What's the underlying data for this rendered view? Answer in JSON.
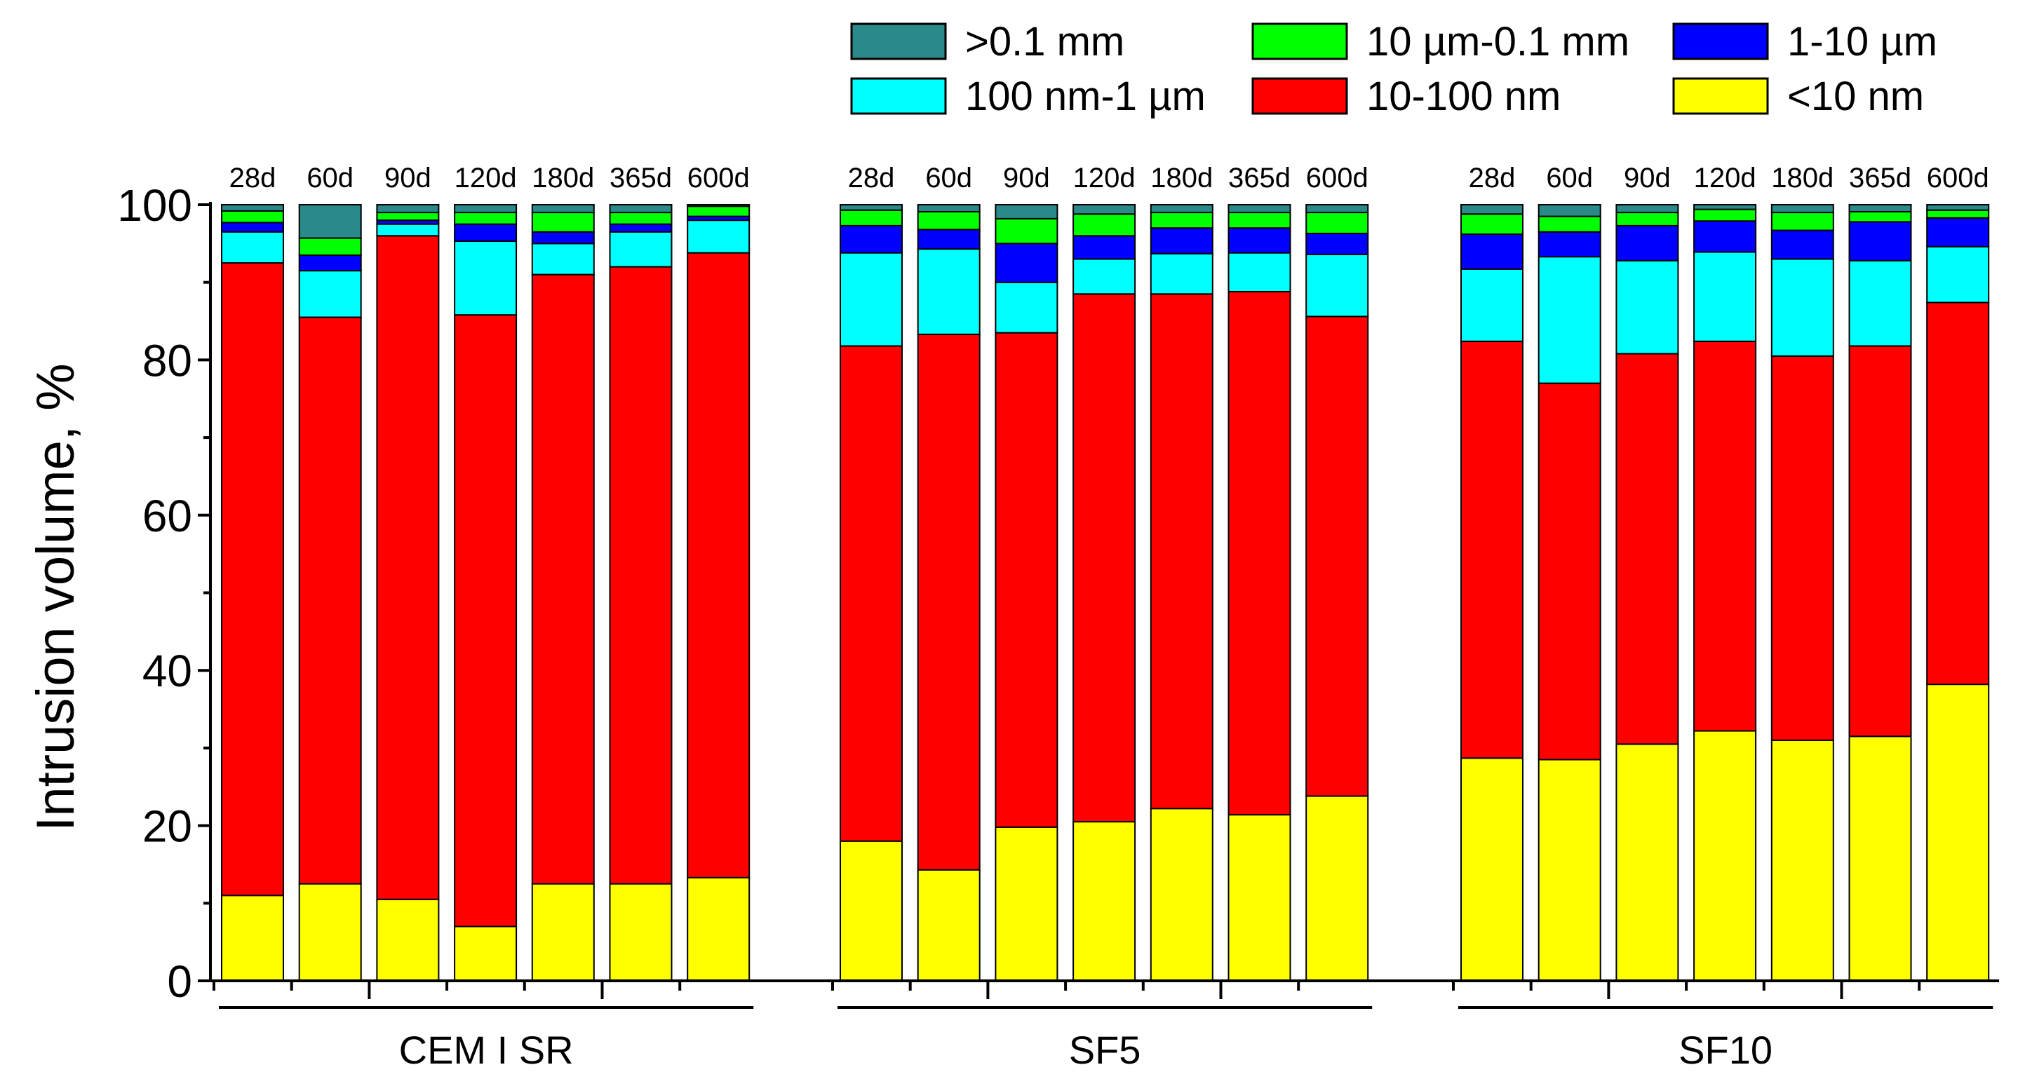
{
  "chart_data": {
    "type": "bar",
    "stacked": true,
    "ylabel": "Intrusion volume, %",
    "ylim": [
      0,
      100
    ],
    "yticks": [
      0,
      20,
      40,
      60,
      80,
      100
    ],
    "legend_position": "top-right",
    "series": [
      {
        "name": ">0.1 mm",
        "color": "#2a8a8a"
      },
      {
        "name": "10 µm-0.1 mm",
        "color": "#00ff00"
      },
      {
        "name": "1-10 µm",
        "color": "#0000ff"
      },
      {
        "name": "100 nm-1 µm",
        "color": "#00ffff"
      },
      {
        "name": "10-100 nm",
        "color": "#ff0000"
      },
      {
        "name": "<10 nm",
        "color": "#ffff00"
      }
    ],
    "stack_order": [
      "<10 nm",
      "10-100 nm",
      "100 nm-1 µm",
      "1-10 µm",
      "10 µm-0.1 mm",
      ">0.1 mm"
    ],
    "groups": [
      {
        "name": "CEM I SR",
        "bars": [
          {
            "label": "28d",
            "values": {
              "<10 nm": 11,
              "10-100 nm": 81.5,
              "100 nm-1 µm": 4,
              "1-10 µm": 1.2,
              "10 µm-0.1 mm": 1.5,
              ">0.1 mm": 0.8
            }
          },
          {
            "label": "60d",
            "values": {
              "<10 nm": 12.5,
              "10-100 nm": 73,
              "100 nm-1 µm": 6,
              "1-10 µm": 2,
              "10 µm-0.1 mm": 2.2,
              ">0.1 mm": 4.3
            }
          },
          {
            "label": "90d",
            "values": {
              "<10 nm": 10.5,
              "10-100 nm": 85.5,
              "100 nm-1 µm": 1.5,
              "1-10 µm": 0.5,
              "10 µm-0.1 mm": 1,
              ">0.1 mm": 1
            }
          },
          {
            "label": "120d",
            "values": {
              "<10 nm": 7,
              "10-100 nm": 78.8,
              "100 nm-1 µm": 9.5,
              "1-10 µm": 2.2,
              "10 µm-0.1 mm": 1.5,
              ">0.1 mm": 1
            }
          },
          {
            "label": "180d",
            "values": {
              "<10 nm": 12.5,
              "10-100 nm": 78.5,
              "100 nm-1 µm": 4,
              "1-10 µm": 1.5,
              "10 µm-0.1 mm": 2.5,
              ">0.1 mm": 1
            }
          },
          {
            "label": "365d",
            "values": {
              "<10 nm": 12.5,
              "10-100 nm": 79.5,
              "100 nm-1 µm": 4.5,
              "1-10 µm": 1,
              "10 µm-0.1 mm": 1.5,
              ">0.1 mm": 1
            }
          },
          {
            "label": "600d",
            "values": {
              "<10 nm": 13.3,
              "10-100 nm": 80.5,
              "100 nm-1 µm": 4.2,
              "1-10 µm": 0.5,
              "10 µm-0.1 mm": 1.3,
              ">0.1 mm": 0.2
            }
          }
        ]
      },
      {
        "name": "SF5",
        "bars": [
          {
            "label": "28d",
            "values": {
              "<10 nm": 18,
              "10-100 nm": 63.8,
              "100 nm-1 µm": 12,
              "1-10 µm": 3.5,
              "10 µm-0.1 mm": 2,
              ">0.1 mm": 0.7
            }
          },
          {
            "label": "60d",
            "values": {
              "<10 nm": 14.3,
              "10-100 nm": 69,
              "100 nm-1 µm": 11,
              "1-10 µm": 2.5,
              "10 µm-0.1 mm": 2.3,
              ">0.1 mm": 0.9
            }
          },
          {
            "label": "90d",
            "values": {
              "<10 nm": 19.8,
              "10-100 nm": 63.7,
              "100 nm-1 µm": 6.5,
              "1-10 µm": 5,
              "10 µm-0.1 mm": 3.2,
              ">0.1 mm": 1.8
            }
          },
          {
            "label": "120d",
            "values": {
              "<10 nm": 20.5,
              "10-100 nm": 68,
              "100 nm-1 µm": 4.5,
              "1-10 µm": 3,
              "10 µm-0.1 mm": 2.8,
              ">0.1 mm": 1.2
            }
          },
          {
            "label": "180d",
            "values": {
              "<10 nm": 22.2,
              "10-100 nm": 66.3,
              "100 nm-1 µm": 5.2,
              "1-10 µm": 3.3,
              "10 µm-0.1 mm": 2,
              ">0.1 mm": 1
            }
          },
          {
            "label": "365d",
            "values": {
              "<10 nm": 21.4,
              "10-100 nm": 67.4,
              "100 nm-1 µm": 5,
              "1-10 µm": 3.2,
              "10 µm-0.1 mm": 2,
              ">0.1 mm": 1
            }
          },
          {
            "label": "600d",
            "values": {
              "<10 nm": 23.8,
              "10-100 nm": 61.8,
              "100 nm-1 µm": 8,
              "1-10 µm": 2.7,
              "10 µm-0.1 mm": 2.7,
              ">0.1 mm": 1
            }
          }
        ]
      },
      {
        "name": "SF10",
        "bars": [
          {
            "label": "28d",
            "values": {
              "<10 nm": 28.7,
              "10-100 nm": 53.7,
              "100 nm-1 µm": 9.3,
              "1-10 µm": 4.5,
              "10 µm-0.1 mm": 2.6,
              ">0.1 mm": 1.2
            }
          },
          {
            "label": "60d",
            "values": {
              "<10 nm": 28.5,
              "10-100 nm": 48.5,
              "100 nm-1 µm": 16.3,
              "1-10 µm": 3.2,
              "10 µm-0.1 mm": 2,
              ">0.1 mm": 1.5
            }
          },
          {
            "label": "90d",
            "values": {
              "<10 nm": 30.5,
              "10-100 nm": 50.3,
              "100 nm-1 µm": 12,
              "1-10 µm": 4.5,
              "10 µm-0.1 mm": 1.7,
              ">0.1 mm": 1
            }
          },
          {
            "label": "120d",
            "values": {
              "<10 nm": 32.2,
              "10-100 nm": 50.2,
              "100 nm-1 µm": 11.5,
              "1-10 µm": 4,
              "10 µm-0.1 mm": 1.5,
              ">0.1 mm": 0.6
            }
          },
          {
            "label": "180d",
            "values": {
              "<10 nm": 31,
              "10-100 nm": 49.5,
              "100 nm-1 µm": 12.5,
              "1-10 µm": 3.7,
              "10 µm-0.1 mm": 2.3,
              ">0.1 mm": 1
            }
          },
          {
            "label": "365d",
            "values": {
              "<10 nm": 31.5,
              "10-100 nm": 50.3,
              "100 nm-1 µm": 11,
              "1-10 µm": 5,
              "10 µm-0.1 mm": 1.3,
              ">0.1 mm": 0.9
            }
          },
          {
            "label": "600d",
            "values": {
              "<10 nm": 38.2,
              "10-100 nm": 49.2,
              "100 nm-1 µm": 7.2,
              "1-10 µm": 3.7,
              "10 µm-0.1 mm": 1,
              ">0.1 mm": 0.7
            }
          }
        ]
      }
    ]
  }
}
